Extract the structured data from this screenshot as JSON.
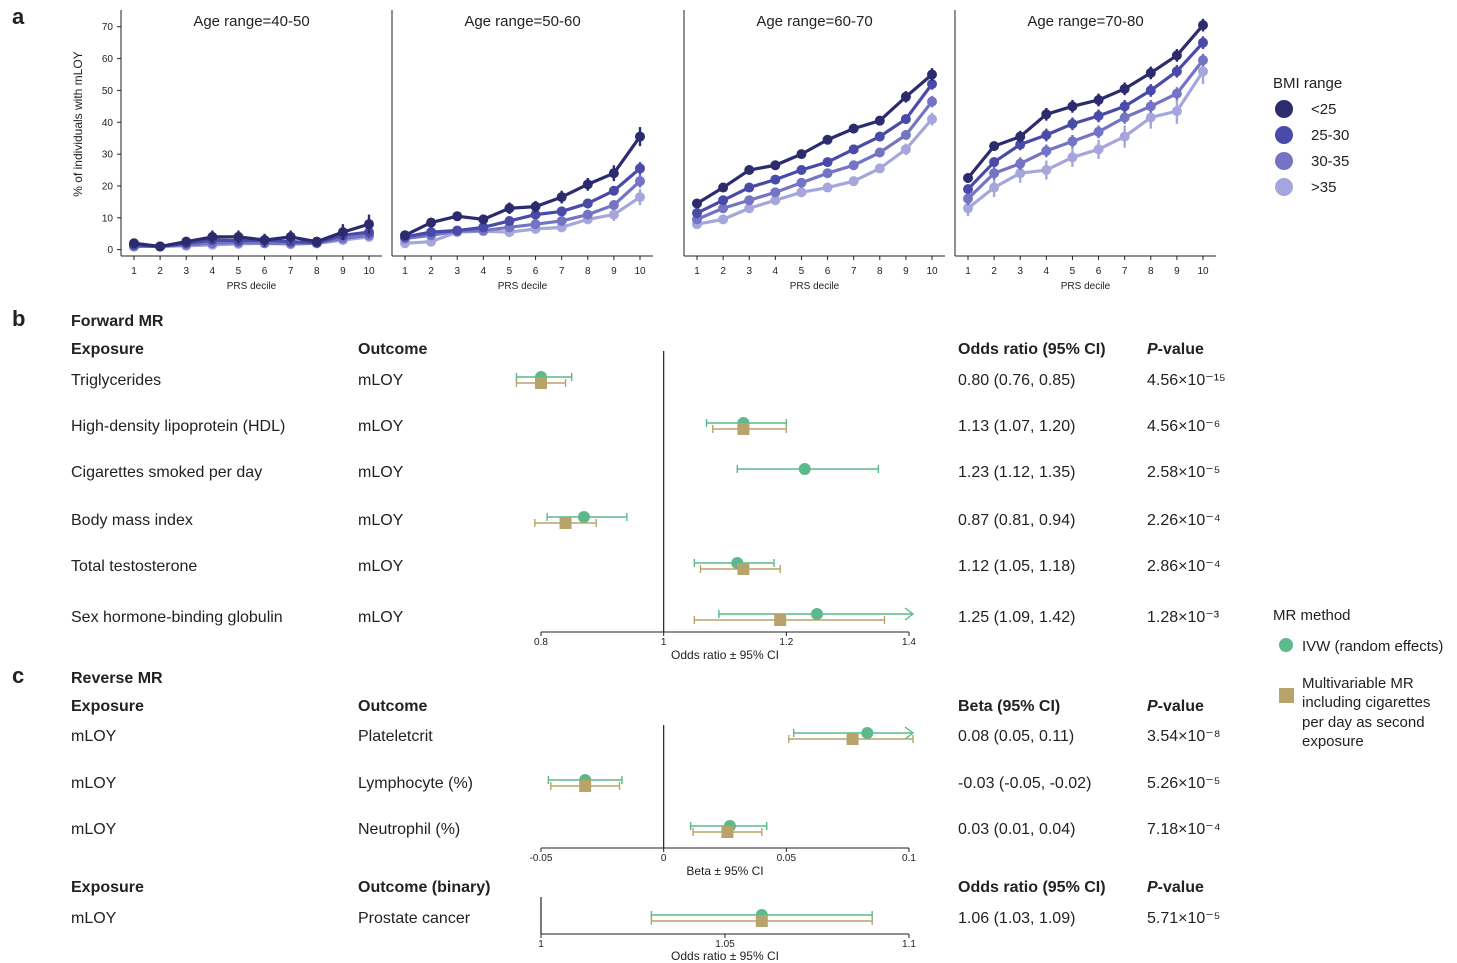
{
  "panel_labels": {
    "a": "a",
    "b": "b",
    "c": "c"
  },
  "colors": {
    "bmi": [
      "#2b2b6e",
      "#4a4aa8",
      "#7474c4",
      "#a6a6dc"
    ],
    "ivw": "#5bb98c",
    "mvmr": "#b8a36a",
    "axis": "#222222"
  },
  "panel_a": {
    "ylabel": "% of individuals with mLOY",
    "xlabel": "PRS decile",
    "legend_title": "BMI range",
    "legend": [
      "<25",
      "25-30",
      "30-35",
      ">35"
    ]
  },
  "panel_b": {
    "title": "Forward MR",
    "headers": {
      "exposure": "Exposure",
      "outcome": "Outcome",
      "or": "Odds ratio (95% CI)",
      "p": "P-value"
    },
    "rows": [
      {
        "exposure": "Triglycerides",
        "outcome": "mLOY",
        "or_text": "0.80 (0.76, 0.85)",
        "p_text": "4.56×10⁻¹⁵"
      },
      {
        "exposure": "High-density lipoprotein (HDL)",
        "outcome": "mLOY",
        "or_text": "1.13 (1.07, 1.20)",
        "p_text": "4.56×10⁻⁶"
      },
      {
        "exposure": "Cigarettes smoked per day",
        "outcome": "mLOY",
        "or_text": "1.23 (1.12, 1.35)",
        "p_text": "2.58×10⁻⁵"
      },
      {
        "exposure": "Body mass index",
        "outcome": "mLOY",
        "or_text": "0.87 (0.81, 0.94)",
        "p_text": "2.26×10⁻⁴"
      },
      {
        "exposure": "Total testosterone",
        "outcome": "mLOY",
        "or_text": "1.12 (1.05, 1.18)",
        "p_text": "2.86×10⁻⁴"
      },
      {
        "exposure": "Sex hormone-binding globulin",
        "outcome": "mLOY",
        "or_text": "1.25 (1.09, 1.42)",
        "p_text": "1.28×10⁻³"
      }
    ],
    "xlabel": "Odds ratio ± 95% CI"
  },
  "panel_c": {
    "title": "Reverse MR",
    "headers": {
      "exposure": "Exposure",
      "outcome": "Outcome",
      "beta": "Beta (95% CI)",
      "p": "P-value"
    },
    "rows": [
      {
        "exposure": "mLOY",
        "outcome": "Plateletcrit",
        "beta_text": "0.08 (0.05, 0.11)",
        "p_text": "3.54×10⁻⁸"
      },
      {
        "exposure": "mLOY",
        "outcome": "Lymphocyte (%)",
        "beta_text": "-0.03 (-0.05, -0.02)",
        "p_text": "5.26×10⁻⁵"
      },
      {
        "exposure": "mLOY",
        "outcome": "Neutrophil (%)",
        "beta_text": "0.03 (0.01, 0.04)",
        "p_text": "7.18×10⁻⁴"
      }
    ],
    "xlabel": "Beta ± 95% CI",
    "binary_headers": {
      "exposure": "Exposure",
      "outcome": "Outcome (binary)",
      "or": "Odds ratio (95% CI)",
      "p": "P-value"
    },
    "binary_rows": [
      {
        "exposure": "mLOY",
        "outcome": "Prostate cancer",
        "or_text": "1.06 (1.03, 1.09)",
        "p_text": "5.71×10⁻⁵"
      }
    ],
    "binary_xlabel": "Odds ratio ± 95% CI"
  },
  "mr_legend": {
    "title": "MR method",
    "ivw": "IVW (random effects)",
    "mvmr_lines": [
      "Multivariable MR",
      "including cigarettes",
      "per day as second",
      "exposure"
    ]
  },
  "chart_data": [
    {
      "type": "line",
      "panel": "a",
      "facets": [
        "Age range=40-50",
        "Age range=50-60",
        "Age range=60-70",
        "Age range=70-80"
      ],
      "x": [
        1,
        2,
        3,
        4,
        5,
        6,
        7,
        8,
        9,
        10
      ],
      "xlabel": "PRS decile",
      "ylabel": "% of individuals with mLOY",
      "ylim": [
        -2,
        74
      ],
      "yticks": [
        0,
        10,
        20,
        30,
        40,
        50,
        60,
        70
      ],
      "legend_title": "BMI range",
      "series_by_facet": [
        [
          {
            "name": "<25",
            "values": [
              2,
              1,
              2.5,
              4,
              4,
              3,
              4,
              2.5,
              5.5,
              8
            ],
            "err": [
              1.5,
              1,
              1.5,
              2,
              2,
              2,
              2,
              1.5,
              2.5,
              3
            ]
          },
          {
            "name": "25-30",
            "values": [
              1.5,
              1,
              2,
              3,
              2.8,
              3,
              2.5,
              2.2,
              4.5,
              5.5
            ],
            "err": [
              1,
              0.8,
              1,
              1.2,
              1.2,
              1.2,
              1.2,
              1,
              1.5,
              1.8
            ]
          },
          {
            "name": "30-35",
            "values": [
              1,
              1,
              1.5,
              2,
              2.2,
              2,
              2,
              2,
              3.5,
              4.5
            ],
            "err": [
              0.8,
              0.8,
              0.8,
              1,
              1,
              1,
              1,
              1,
              1.2,
              1.5
            ]
          },
          {
            "name": ">35",
            "values": [
              1,
              1,
              1.2,
              1.5,
              1.8,
              2,
              1.7,
              2,
              3,
              4
            ],
            "err": [
              0.8,
              0.8,
              0.8,
              1,
              1,
              1,
              1,
              1,
              1.2,
              1.5
            ]
          }
        ],
        [
          {
            "name": "<25",
            "values": [
              4.5,
              8.5,
              10.5,
              9.5,
              13,
              13.5,
              16.5,
              20.5,
              24,
              35.5
            ],
            "err": [
              1,
              1.5,
              1.5,
              1.5,
              1.8,
              1.8,
              2,
              2,
              2.5,
              3
            ]
          },
          {
            "name": "25-30",
            "values": [
              4,
              5.5,
              6,
              7,
              9,
              11,
              12,
              14.5,
              18.5,
              25.5
            ],
            "err": [
              0.8,
              1,
              1,
              1,
              1.2,
              1.2,
              1.2,
              1.5,
              1.5,
              2
            ]
          },
          {
            "name": "30-35",
            "values": [
              3.5,
              4.5,
              5.8,
              6,
              7,
              8,
              9,
              11,
              14,
              21.5
            ],
            "err": [
              0.8,
              1,
              1,
              1,
              1.2,
              1.2,
              1.2,
              1.5,
              1.5,
              2
            ]
          },
          {
            "name": ">35",
            "values": [
              2,
              2.5,
              5.5,
              5.8,
              5.5,
              6.5,
              7,
              9.5,
              11,
              16.5
            ],
            "err": [
              1,
              1,
              1.2,
              1.2,
              1.2,
              1.2,
              1.5,
              1.5,
              2,
              2.5
            ]
          }
        ],
        [
          {
            "name": "<25",
            "values": [
              14.5,
              19.5,
              25,
              26.5,
              30,
              34.5,
              38,
              40.5,
              48,
              55
            ],
            "err": [
              1,
              1,
              1.2,
              1.2,
              1.2,
              1.5,
              1.5,
              1.5,
              1.8,
              2
            ]
          },
          {
            "name": "25-30",
            "values": [
              11.5,
              15.5,
              19.5,
              22,
              25,
              27.5,
              31.5,
              35.5,
              41,
              52
            ],
            "err": [
              1,
              1,
              1,
              1,
              1.2,
              1.2,
              1.2,
              1.5,
              1.5,
              1.8
            ]
          },
          {
            "name": "30-35",
            "values": [
              9.5,
              13,
              15.5,
              18,
              21,
              24,
              26.5,
              30.5,
              36,
              46.5
            ],
            "err": [
              1,
              1,
              1,
              1,
              1.2,
              1.2,
              1.2,
              1.5,
              1.5,
              1.8
            ]
          },
          {
            "name": ">35",
            "values": [
              8,
              9.5,
              13,
              15.5,
              18,
              19.5,
              21.5,
              25.5,
              31.5,
              41
            ],
            "err": [
              1,
              1,
              1.2,
              1.2,
              1.2,
              1.2,
              1.5,
              1.5,
              1.8,
              2
            ]
          }
        ],
        [
          {
            "name": "<25",
            "values": [
              22.5,
              32.5,
              35.5,
              42.5,
              45,
              47,
              50.5,
              55.5,
              61,
              70.5
            ],
            "err": [
              1.5,
              1.5,
              1.8,
              2,
              2,
              2,
              2,
              2,
              2,
              2
            ]
          },
          {
            "name": "25-30",
            "values": [
              19,
              27.5,
              33,
              36,
              39.5,
              42,
              45,
              50,
              56,
              65
            ],
            "err": [
              1.5,
              1.5,
              1.8,
              2,
              2,
              2,
              2,
              2,
              2,
              2
            ]
          },
          {
            "name": "30-35",
            "values": [
              16,
              24,
              27,
              31,
              34,
              37,
              41.5,
              45,
              49,
              59.5
            ],
            "err": [
              2,
              2,
              2,
              2,
              2,
              2,
              2,
              2,
              2,
              2
            ]
          },
          {
            "name": ">35",
            "values": [
              13,
              19.5,
              24,
              25,
              29,
              31.5,
              35.5,
              41.5,
              43.5,
              56
            ],
            "err": [
              2.5,
              3,
              3,
              3,
              3,
              3,
              3.5,
              3.5,
              4,
              4
            ]
          }
        ]
      ]
    },
    {
      "type": "scatter",
      "panel": "b",
      "title": "Forward MR",
      "xlabel": "Odds ratio ± 95% CI",
      "xlim": [
        0.8,
        1.4
      ],
      "xticks": [
        0.8,
        1,
        1.2,
        1.4
      ],
      "ref": 1,
      "categories": [
        "Triglycerides",
        "High-density lipoprotein (HDL)",
        "Cigarettes smoked per day",
        "Body mass index",
        "Total testosterone",
        "Sex hormone-binding globulin"
      ],
      "series": [
        {
          "name": "IVW (random effects)",
          "est": [
            0.8,
            1.13,
            1.23,
            0.87,
            1.12,
            1.25
          ],
          "lo": [
            0.76,
            1.07,
            1.12,
            0.81,
            1.05,
            1.09
          ],
          "hi": [
            0.85,
            1.2,
            1.35,
            0.94,
            1.18,
            1.42
          ]
        },
        {
          "name": "Multivariable MR including cigarettes per day as second exposure",
          "est": [
            0.8,
            1.13,
            null,
            0.84,
            1.13,
            1.19
          ],
          "lo": [
            0.76,
            1.08,
            null,
            0.79,
            1.06,
            1.05
          ],
          "hi": [
            0.84,
            1.2,
            null,
            0.89,
            1.19,
            1.36
          ]
        }
      ]
    },
    {
      "type": "scatter",
      "panel": "c",
      "title": "Reverse MR",
      "xlabel": "Beta ± 95% CI",
      "xlim": [
        -0.05,
        0.1
      ],
      "xticks": [
        -0.05,
        0,
        0.05,
        0.1
      ],
      "ref": 0,
      "categories": [
        "Plateletcrit",
        "Lymphocyte (%)",
        "Neutrophil (%)"
      ],
      "series": [
        {
          "name": "IVW (random effects)",
          "est": [
            0.083,
            -0.032,
            0.027
          ],
          "lo": [
            0.053,
            -0.047,
            0.011
          ],
          "hi": [
            0.11,
            -0.017,
            0.042
          ]
        },
        {
          "name": "Multivariable MR including cigarettes per day as second exposure",
          "est": [
            0.077,
            -0.032,
            0.026
          ],
          "lo": [
            0.051,
            -0.046,
            0.012
          ],
          "hi": [
            0.103,
            -0.018,
            0.04
          ]
        }
      ]
    },
    {
      "type": "scatter",
      "panel": "c-binary",
      "xlabel": "Odds ratio ± 95% CI",
      "xlim": [
        1,
        1.1
      ],
      "xticks": [
        1,
        1.05,
        1.1
      ],
      "categories": [
        "Prostate cancer"
      ],
      "series": [
        {
          "name": "IVW (random effects)",
          "est": [
            1.06
          ],
          "lo": [
            1.03
          ],
          "hi": [
            1.09
          ]
        },
        {
          "name": "Multivariable MR including cigarettes per day as second exposure",
          "est": [
            1.06
          ],
          "lo": [
            1.03
          ],
          "hi": [
            1.09
          ]
        }
      ]
    }
  ]
}
